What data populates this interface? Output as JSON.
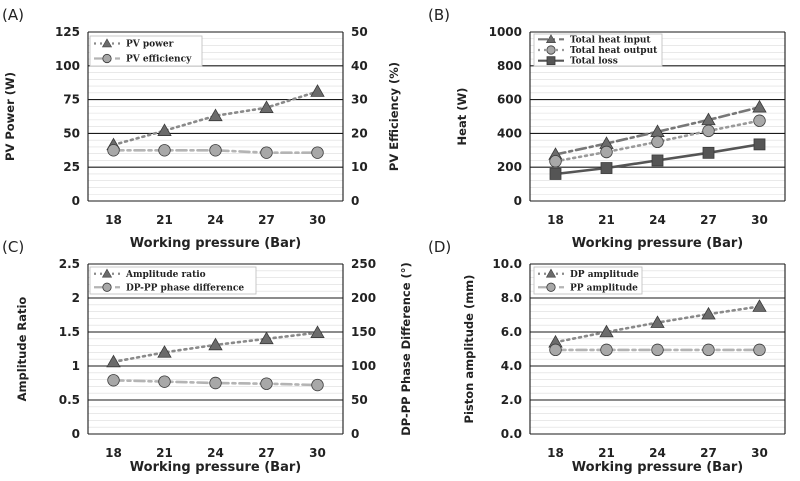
{
  "chart_data": [
    {
      "type": "line",
      "panel_label": "(A)",
      "categories": [
        "18",
        "21",
        "24",
        "27",
        "30"
      ],
      "xlabel": "Working pressure (Bar)",
      "ylabel": "PV Power (W)",
      "ylabel_right": "PV Efficiency (%)",
      "ylim": [
        0,
        125
      ],
      "y_ticks": [
        0,
        25,
        50,
        75,
        100,
        125
      ],
      "y_tick_labels": [
        "0",
        "25",
        "50",
        "75",
        "100",
        "125"
      ],
      "y2lim": [
        0,
        50
      ],
      "y2_ticks": [
        0,
        10,
        20,
        30,
        40,
        50
      ],
      "y2_tick_labels": [
        "0",
        "10",
        "20",
        "30",
        "40",
        "50"
      ],
      "grid": true,
      "legend_position": "top-left",
      "series": [
        {
          "name": "PV power",
          "values": [
            41.5,
            52,
            63,
            69,
            81
          ],
          "axis": "left",
          "marker": "triangle",
          "color": "#6b6b6b",
          "dash": "dot",
          "line_color": "#8a8a8a"
        },
        {
          "name": "PV efficiency",
          "values": [
            15,
            15,
            15,
            14.3,
            14.3
          ],
          "axis": "right",
          "marker": "circle",
          "color": "#a8a8a8",
          "dash": "dashdot",
          "line_color": "#b4b4b4"
        }
      ]
    },
    {
      "type": "line",
      "panel_label": "(B)",
      "categories": [
        "18",
        "21",
        "24",
        "27",
        "30"
      ],
      "xlabel": "Working pressure (Bar)",
      "ylabel": "Heat (W)",
      "ylim": [
        0,
        1000
      ],
      "y_ticks": [
        0,
        200,
        400,
        600,
        800,
        1000
      ],
      "y_tick_labels": [
        "0",
        "200",
        "400",
        "600",
        "800",
        "1000"
      ],
      "grid": true,
      "legend_position": "top-left",
      "series": [
        {
          "name": "Total heat input",
          "values": [
            275,
            340,
            410,
            480,
            555
          ],
          "axis": "left",
          "marker": "triangle",
          "color": "#6b6b6b",
          "dash": "dashdot",
          "line_color": "#777777"
        },
        {
          "name": "Total heat output",
          "values": [
            235,
            290,
            350,
            415,
            475
          ],
          "axis": "left",
          "marker": "circle",
          "color": "#a8a8a8",
          "dash": "dot",
          "line_color": "#9a9a9a"
        },
        {
          "name": "Total loss",
          "values": [
            160,
            195,
            240,
            285,
            335
          ],
          "axis": "left",
          "marker": "square",
          "color": "#555555",
          "dash": "solid",
          "line_color": "#555555"
        }
      ]
    },
    {
      "type": "line",
      "panel_label": "(C)",
      "categories": [
        "18",
        "21",
        "24",
        "27",
        "30"
      ],
      "xlabel": "Working pressure (Bar)",
      "ylabel": "Amplitude Ratio",
      "ylabel_right": "DP-PP Phase Difference (°)",
      "ylim": [
        0,
        2.5
      ],
      "y_ticks": [
        0,
        0.5,
        1,
        1.5,
        2,
        2.5
      ],
      "y_tick_labels": [
        "0",
        "0.5",
        "1",
        "1.5",
        "2",
        "2.5"
      ],
      "y2lim": [
        0,
        250
      ],
      "y2_ticks": [
        0,
        50,
        100,
        150,
        200,
        250
      ],
      "y2_tick_labels": [
        "0",
        "50",
        "100",
        "150",
        "200",
        "250"
      ],
      "grid": true,
      "legend_position": "top-left",
      "series": [
        {
          "name": "Amplitude ratio",
          "values": [
            1.06,
            1.2,
            1.31,
            1.4,
            1.49
          ],
          "axis": "left",
          "marker": "triangle",
          "color": "#6b6b6b",
          "dash": "dot",
          "line_color": "#8a8a8a"
        },
        {
          "name": "DP-PP phase difference",
          "values": [
            79,
            77,
            75,
            74,
            72
          ],
          "axis": "right",
          "marker": "circle",
          "color": "#a8a8a8",
          "dash": "dashdot",
          "line_color": "#b4b4b4"
        }
      ]
    },
    {
      "type": "line",
      "panel_label": "(D)",
      "categories": [
        "18",
        "21",
        "24",
        "27",
        "30"
      ],
      "xlabel": "Working pressure (Bar)",
      "ylabel": "Piston amplitude (mm)",
      "ylim": [
        0,
        10
      ],
      "y_ticks": [
        0,
        2,
        4,
        6,
        8,
        10
      ],
      "y_tick_labels": [
        "0.0",
        "2.0",
        "4.0",
        "6.0",
        "8.0",
        "10.0"
      ],
      "grid": true,
      "legend_position": "top-left",
      "series": [
        {
          "name": "DP amplitude",
          "values": [
            5.4,
            6.0,
            6.55,
            7.05,
            7.5
          ],
          "axis": "left",
          "marker": "triangle",
          "color": "#6b6b6b",
          "dash": "dot",
          "line_color": "#8a8a8a"
        },
        {
          "name": "PP amplitude",
          "values": [
            4.95,
            4.95,
            4.95,
            4.95,
            4.95
          ],
          "axis": "left",
          "marker": "circle",
          "color": "#a8a8a8",
          "dash": "dashdot",
          "line_color": "#b4b4b4"
        }
      ]
    }
  ]
}
